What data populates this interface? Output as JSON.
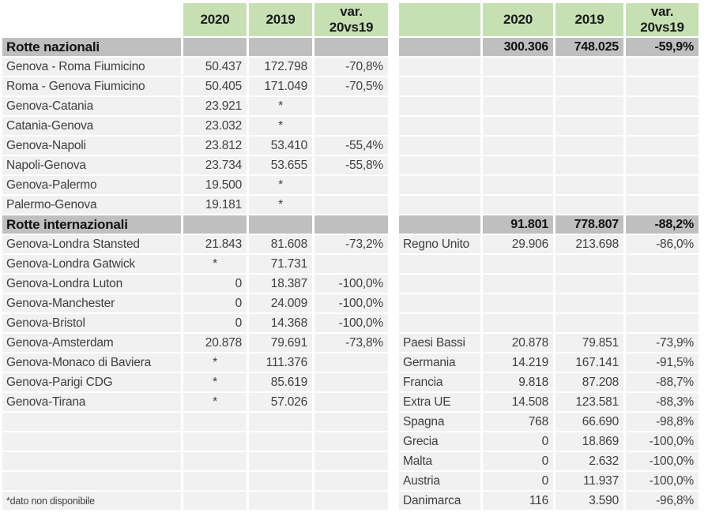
{
  "colors": {
    "header_green": "#c6e0b4",
    "section_gray": "#bfbfbf",
    "row_fill": "#f1f1f1",
    "data_text": "#3e3e3e"
  },
  "tables": [
    {
      "id": "routes",
      "name": "routes-table",
      "header": {
        "corner": "",
        "corner_filled": false,
        "cols": [
          "2020",
          "2019",
          "var.\n20vs19"
        ]
      },
      "rows": [
        {
          "type": "section",
          "cells": [
            "Rotte nazionali",
            "",
            "",
            ""
          ]
        },
        {
          "type": "data",
          "cells": [
            "Genova - Roma Fiumicino",
            "50.437",
            "172.798",
            "-70,8%"
          ]
        },
        {
          "type": "data",
          "cells": [
            "Roma - Genova Fiumicino",
            "50.405",
            "171.049",
            "-70,5%"
          ]
        },
        {
          "type": "data",
          "cells": [
            "Genova-Catania",
            "23.921",
            "*",
            ""
          ]
        },
        {
          "type": "data",
          "cells": [
            "Catania-Genova",
            "23.032",
            "*",
            ""
          ]
        },
        {
          "type": "data",
          "cells": [
            "Genova-Napoli",
            "23.812",
            "53.410",
            "-55,4%"
          ]
        },
        {
          "type": "data",
          "cells": [
            "Napoli-Genova",
            "23.734",
            "53.655",
            "-55,8%"
          ]
        },
        {
          "type": "data",
          "cells": [
            "Genova-Palermo",
            "19.500",
            "*",
            ""
          ]
        },
        {
          "type": "data",
          "cells": [
            "Palermo-Genova",
            "19.181",
            "*",
            ""
          ]
        },
        {
          "type": "section",
          "cells": [
            "Rotte internazionali",
            "",
            "",
            ""
          ]
        },
        {
          "type": "data",
          "cells": [
            "Genova-Londra Stansted",
            "21.843",
            "81.608",
            "-73,2%"
          ]
        },
        {
          "type": "data",
          "cells": [
            "Genova-Londra Gatwick",
            "*",
            "71.731",
            ""
          ]
        },
        {
          "type": "data",
          "cells": [
            "Genova-Londra Luton",
            "0",
            "18.387",
            "-100,0%"
          ]
        },
        {
          "type": "data",
          "cells": [
            "Genova-Manchester",
            "0",
            "24.009",
            "-100,0%"
          ]
        },
        {
          "type": "data",
          "cells": [
            "Genova-Bristol",
            "0",
            "14.368",
            "-100,0%"
          ]
        },
        {
          "type": "data",
          "cells": [
            "Genova-Amsterdam",
            "20.878",
            "79.691",
            "-73,8%"
          ]
        },
        {
          "type": "data",
          "cells": [
            "Genova-Monaco di Baviera",
            "*",
            "111.376",
            ""
          ]
        },
        {
          "type": "data",
          "cells": [
            "Genova-Parigi CDG",
            "*",
            "85.619",
            ""
          ]
        },
        {
          "type": "data",
          "cells": [
            "Genova-Tirana",
            "*",
            "57.026",
            ""
          ]
        },
        {
          "type": "empty"
        },
        {
          "type": "empty"
        },
        {
          "type": "empty"
        },
        {
          "type": "empty"
        },
        {
          "type": "note",
          "cells": [
            "*dato non disponibile",
            "",
            "",
            ""
          ]
        }
      ]
    },
    {
      "id": "countries",
      "name": "countries-table",
      "header": {
        "corner": "",
        "corner_filled": true,
        "cols": [
          "2020",
          "2019",
          "var.\n20vs19"
        ]
      },
      "rows": [
        {
          "type": "total",
          "cells": [
            "",
            "300.306",
            "748.025",
            "-59,9%"
          ]
        },
        {
          "type": "empty"
        },
        {
          "type": "empty"
        },
        {
          "type": "empty"
        },
        {
          "type": "empty"
        },
        {
          "type": "empty"
        },
        {
          "type": "empty"
        },
        {
          "type": "empty"
        },
        {
          "type": "empty"
        },
        {
          "type": "total",
          "cells": [
            "",
            "91.801",
            "778.807",
            "-88,2%"
          ]
        },
        {
          "type": "data",
          "cells": [
            "Regno Unito",
            "29.906",
            "213.698",
            "-86,0%"
          ]
        },
        {
          "type": "empty"
        },
        {
          "type": "empty"
        },
        {
          "type": "empty"
        },
        {
          "type": "empty"
        },
        {
          "type": "data",
          "cells": [
            "Paesi Bassi",
            "20.878",
            "79.851",
            "-73,9%"
          ]
        },
        {
          "type": "data",
          "cells": [
            "Germania",
            "14.219",
            "167.141",
            "-91,5%"
          ]
        },
        {
          "type": "data",
          "cells": [
            "Francia",
            "9.818",
            "87.208",
            "-88,7%"
          ]
        },
        {
          "type": "data",
          "cells": [
            "Extra UE",
            "14.508",
            "123.581",
            "-88,3%"
          ]
        },
        {
          "type": "data",
          "cells": [
            "Spagna",
            "768",
            "66.690",
            "-98,8%"
          ]
        },
        {
          "type": "data",
          "cells": [
            "Grecia",
            "0",
            "18.869",
            "-100,0%"
          ]
        },
        {
          "type": "data",
          "cells": [
            "Malta",
            "0",
            "2.632",
            "-100,0%"
          ]
        },
        {
          "type": "data",
          "cells": [
            "Austria",
            "0",
            "11.937",
            "-100,0%"
          ]
        },
        {
          "type": "data",
          "cells": [
            "Danimarca",
            "116",
            "3.590",
            "-96,8%"
          ]
        }
      ]
    }
  ]
}
